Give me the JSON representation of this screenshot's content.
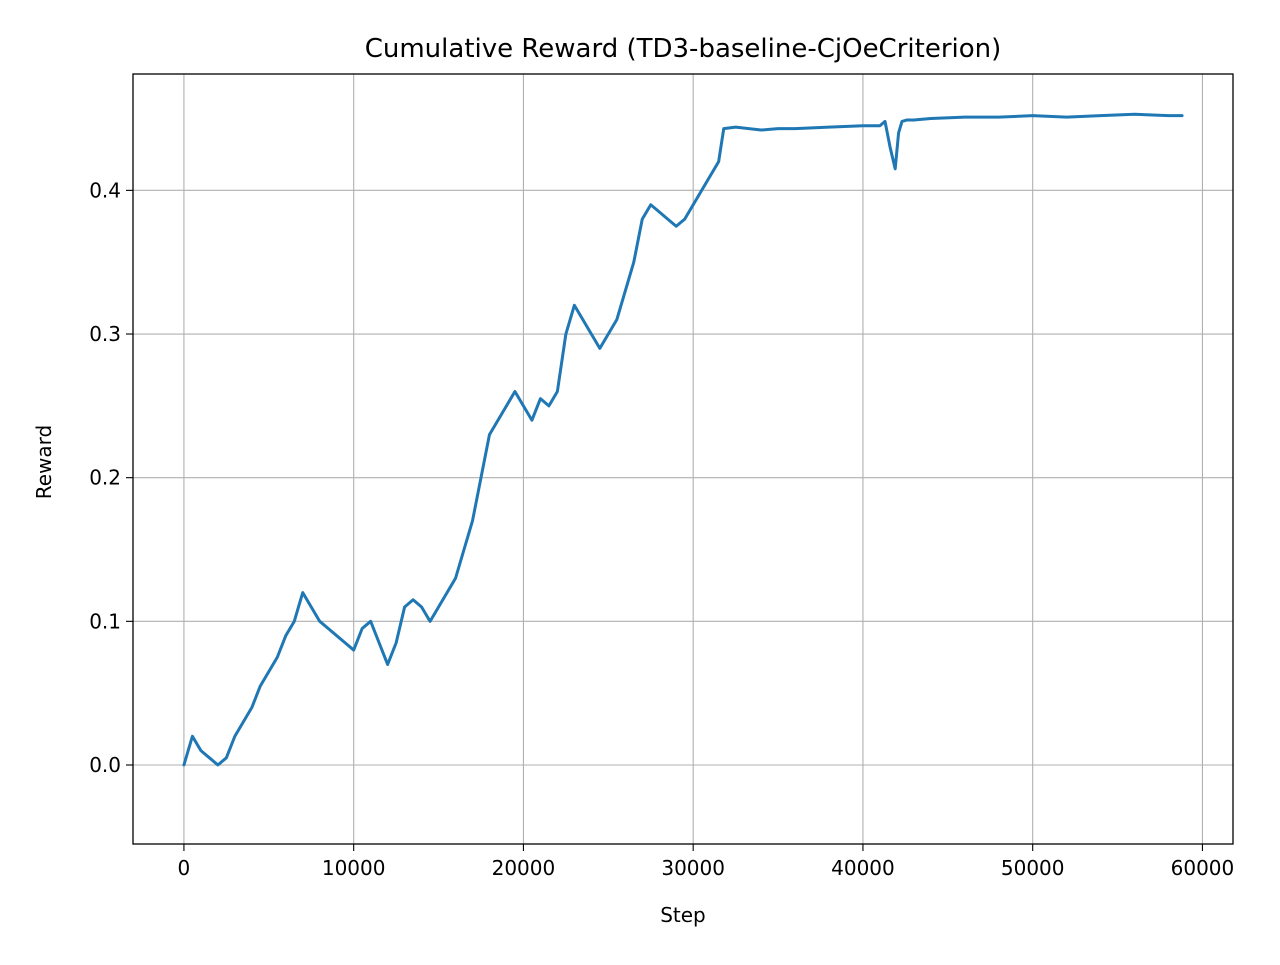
{
  "chart_data": {
    "type": "line",
    "title": "Cumulative Reward (TD3-baseline-CjOeCriterion)",
    "xlabel": "Step",
    "ylabel": "Reward",
    "xlim": [
      -3000,
      61800
    ],
    "ylim": [
      -0.055,
      0.481
    ],
    "xticks": [
      0,
      10000,
      20000,
      30000,
      40000,
      50000,
      60000
    ],
    "xtick_labels": [
      "0",
      "10000",
      "20000",
      "30000",
      "40000",
      "50000",
      "60000"
    ],
    "yticks": [
      0.0,
      0.1,
      0.2,
      0.3,
      0.4
    ],
    "ytick_labels": [
      "0.0",
      "0.1",
      "0.2",
      "0.3",
      "0.4"
    ],
    "grid": true,
    "legend": "none",
    "series": [
      {
        "color": "#1f77b4",
        "x": [
          0,
          500,
          1000,
          1500,
          2000,
          2500,
          3000,
          3500,
          4000,
          4500,
          5000,
          5500,
          6000,
          6500,
          7000,
          7500,
          8000,
          8500,
          9000,
          9500,
          10000,
          10500,
          11000,
          11500,
          12000,
          12500,
          13000,
          13500,
          14000,
          14500,
          15000,
          15500,
          16000,
          16500,
          17000,
          17500,
          18000,
          18500,
          19000,
          19500,
          20000,
          20500,
          21000,
          21500,
          22000,
          22500,
          23000,
          23500,
          24000,
          24500,
          25000,
          25500,
          26000,
          26500,
          27000,
          27500,
          28000,
          28500,
          29000,
          29500,
          30000,
          30500,
          31000,
          31500,
          31800,
          32500,
          34000,
          35000,
          36000,
          38000,
          40000,
          41000,
          41300,
          41600,
          41900,
          42100,
          42300,
          42600,
          43000,
          44000,
          46000,
          48000,
          50000,
          52000,
          54000,
          56000,
          58000,
          58800
        ],
        "y": [
          0.0,
          0.02,
          0.01,
          0.005,
          0.0,
          0.005,
          0.02,
          0.03,
          0.04,
          0.055,
          0.065,
          0.075,
          0.09,
          0.1,
          0.12,
          0.11,
          0.1,
          0.095,
          0.09,
          0.085,
          0.08,
          0.095,
          0.1,
          0.085,
          0.07,
          0.085,
          0.11,
          0.115,
          0.11,
          0.1,
          0.11,
          0.12,
          0.13,
          0.15,
          0.17,
          0.2,
          0.23,
          0.24,
          0.25,
          0.26,
          0.25,
          0.24,
          0.255,
          0.25,
          0.26,
          0.3,
          0.32,
          0.31,
          0.3,
          0.29,
          0.3,
          0.31,
          0.33,
          0.35,
          0.38,
          0.39,
          0.385,
          0.38,
          0.375,
          0.38,
          0.39,
          0.4,
          0.41,
          0.42,
          0.443,
          0.444,
          0.442,
          0.443,
          0.443,
          0.444,
          0.445,
          0.445,
          0.448,
          0.43,
          0.415,
          0.44,
          0.448,
          0.449,
          0.449,
          0.45,
          0.451,
          0.451,
          0.452,
          0.451,
          0.452,
          0.453,
          0.452,
          0.452
        ]
      }
    ]
  }
}
